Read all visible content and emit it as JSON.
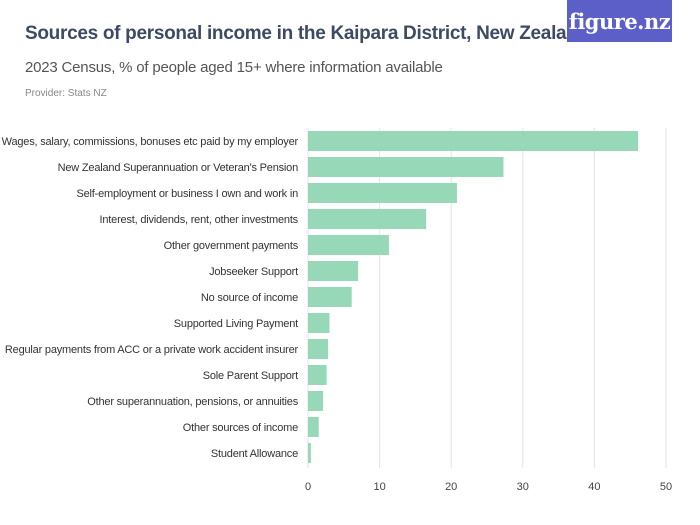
{
  "header": {
    "title": "Sources of personal income in the Kaipara District, New Zealand",
    "subtitle": "2023 Census, % of people aged 15+ where information available",
    "provider": "Provider: Stats NZ",
    "logo": "figure.nz"
  },
  "colors": {
    "bar": "#97d8b8",
    "grid": "#e3e3e3",
    "logo_bg": "#5b5fc7"
  },
  "chart_data": {
    "type": "bar",
    "orientation": "horizontal",
    "categories": [
      "Wages, salary, commissions, bonuses etc paid by my employer",
      "New Zealand Superannuation or Veteran's Pension",
      "Self-employment or business I own and work in",
      "Interest, dividends, rent, other investments",
      "Other government payments",
      "Jobseeker Support",
      "No source of income",
      "Supported Living Payment",
      "Regular payments from ACC or a private work accident insurer",
      "Sole Parent Support",
      "Other superannuation, pensions, or annuities",
      "Other sources of income",
      "Student Allowance"
    ],
    "values": [
      46.1,
      27.3,
      20.8,
      16.5,
      11.3,
      7.0,
      6.1,
      3.0,
      2.8,
      2.6,
      2.1,
      1.5,
      0.4
    ],
    "xlim": [
      0,
      50
    ],
    "xticks": [
      "0",
      "10",
      "20",
      "30",
      "40",
      "50"
    ],
    "grid": true
  }
}
